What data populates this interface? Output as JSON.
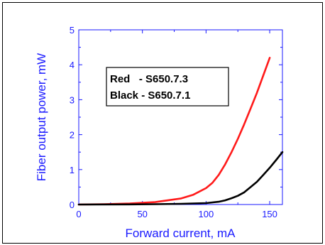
{
  "chart_data": {
    "type": "line",
    "title": "",
    "xlabel": "Forward current, mA",
    "ylabel": "Fiber output power, mW",
    "xlim": [
      0,
      160
    ],
    "ylim": [
      0,
      5
    ],
    "x_ticks": [
      0,
      50,
      100,
      150
    ],
    "y_ticks": [
      0,
      1,
      2,
      3,
      4,
      5
    ],
    "grid": false,
    "axis_color": "#1a1aff",
    "legend_position": "upper-left",
    "legend_lines": [
      "Red   - S650.7.3",
      "Black - S650.7.1"
    ],
    "series": [
      {
        "name": "S650.7.3",
        "color": "#ff1a1a",
        "x": [
          0,
          20,
          40,
          60,
          80,
          90,
          100,
          105,
          110,
          115,
          120,
          125,
          130,
          135,
          140,
          145,
          150
        ],
        "y": [
          0,
          0.01,
          0.03,
          0.07,
          0.17,
          0.28,
          0.47,
          0.62,
          0.85,
          1.15,
          1.5,
          1.88,
          2.3,
          2.75,
          3.2,
          3.7,
          4.2
        ]
      },
      {
        "name": "S650.7.1",
        "color": "#000000",
        "x": [
          0,
          40,
          60,
          80,
          100,
          110,
          115,
          120,
          125,
          130,
          135,
          140,
          145,
          150,
          155,
          160
        ],
        "y": [
          0,
          0.005,
          0.01,
          0.02,
          0.04,
          0.08,
          0.12,
          0.18,
          0.25,
          0.35,
          0.5,
          0.65,
          0.85,
          1.05,
          1.27,
          1.5
        ]
      }
    ]
  }
}
